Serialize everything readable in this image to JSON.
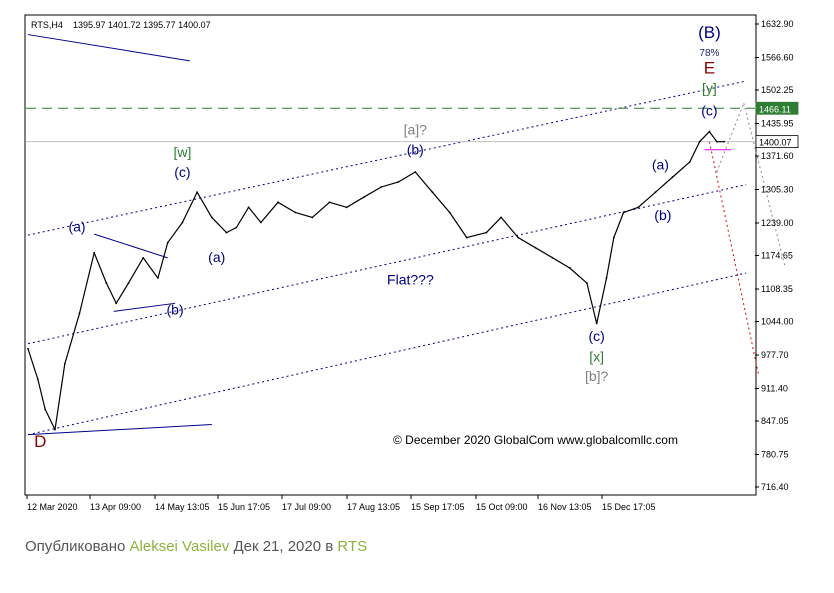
{
  "chart_data": {
    "type": "line",
    "title": "RTS,H4",
    "ohlc_header": "1395.97 1401.72 1395.77 1400.07",
    "ylim": [
      716.4,
      1632.9
    ],
    "y_ticks": [
      "1632.90",
      "1566.60",
      "1502.25",
      "1435.95",
      "1371.60",
      "1305.30",
      "1239.00",
      "1174.65",
      "1108.35",
      "1044.00",
      "977.70",
      "911.40",
      "847.05",
      "780.75",
      "716.40"
    ],
    "x_ticks": [
      "12 Mar 2020",
      "13 Apr 09:00",
      "14 May 13:05",
      "15 Jun 17:05",
      "17 Jul 09:00",
      "17 Aug 13:05",
      "15 Sep 17:05",
      "15 Oct 09:00",
      "16 Nov 13:05",
      "15 Dec 17:05"
    ],
    "series": [
      {
        "x": [
          "12 Mar",
          "16 Mar",
          "19 Mar",
          "23 Mar",
          "27 Mar",
          "02 Apr",
          "08 Apr",
          "13 Apr",
          "17 Apr",
          "22 Apr",
          "28 Apr",
          "04 May",
          "08 May",
          "14 May",
          "20 May",
          "26 May",
          "01 Jun",
          "05 Jun",
          "10 Jun",
          "15 Jun",
          "22 Jun",
          "29 Jun",
          "06 Jul",
          "13 Jul",
          "20 Jul",
          "27 Jul",
          "03 Aug",
          "10 Aug",
          "17 Aug",
          "24 Aug",
          "31 Aug",
          "07 Sep",
          "15 Sep",
          "21 Sep",
          "28 Sep",
          "05 Oct",
          "12 Oct",
          "19 Oct",
          "26 Oct",
          "30 Oct",
          "03 Nov",
          "06 Nov",
          "10 Nov",
          "16 Nov",
          "23 Nov",
          "30 Nov",
          "07 Dec",
          "11 Dec",
          "15 Dec",
          "18 Dec",
          "21 Dec"
        ],
        "values": [
          990,
          930,
          870,
          830,
          960,
          1060,
          1180,
          1120,
          1080,
          1120,
          1170,
          1130,
          1200,
          1240,
          1300,
          1250,
          1220,
          1230,
          1270,
          1240,
          1280,
          1260,
          1250,
          1280,
          1270,
          1290,
          1310,
          1320,
          1340,
          1300,
          1260,
          1210,
          1220,
          1250,
          1210,
          1190,
          1170,
          1150,
          1120,
          1040,
          1130,
          1210,
          1260,
          1270,
          1300,
          1330,
          1360,
          1400,
          1420,
          1400,
          1400
        ]
      }
    ],
    "h_lines": [
      {
        "value": 1466.11,
        "label": "1466.11",
        "style": "dashed",
        "color": "#2e7d32"
      },
      {
        "value": 1400.07,
        "label": "1400.07",
        "style": "solid",
        "color": "#c0c0c0"
      }
    ],
    "channel_lines": [
      {
        "x1": "12 Mar",
        "y1": 1215,
        "x2": "30 Dec",
        "y2": 1520,
        "style": "dotted",
        "color": "#00008b"
      },
      {
        "x1": "12 Mar",
        "y1": 1000,
        "x2": "30 Dec",
        "y2": 1315,
        "style": "dotted",
        "color": "#00008b"
      },
      {
        "x1": "12 Mar",
        "y1": 820,
        "x2": "30 Dec",
        "y2": 1140,
        "style": "dotted",
        "color": "#00008b"
      },
      {
        "x1": "12 Mar",
        "y1": 820,
        "x2": "26 May",
        "y2": 840,
        "style": "solid",
        "color": "#00008b"
      },
      {
        "x1": "12 Mar",
        "y1": 1612,
        "x2": "17 May",
        "y2": 1560,
        "style": "solid",
        "color": "#00008b"
      },
      {
        "x1": "08 Apr",
        "y1": 1217,
        "x2": "08 May",
        "y2": 1170,
        "style": "solid",
        "color": "#00008b"
      },
      {
        "x1": "16 Apr",
        "y1": 1064,
        "x2": "11 May",
        "y2": 1080,
        "style": "solid",
        "color": "#00008b"
      },
      {
        "x1": "13 Dec",
        "y1": 1384,
        "x2": "24 Dec",
        "y2": 1384,
        "style": "solid",
        "color": "#e000e0"
      },
      {
        "x1": "15 Dec",
        "y1": 1400,
        "x2": "04 Jan",
        "y2": 940,
        "style": "dotted",
        "color": "#e00000"
      },
      {
        "x1": "18 Dec",
        "y1": 1340,
        "x2": "29 Dec",
        "y2": 1476,
        "style": "dotted",
        "color": "#888888"
      },
      {
        "x1": "29 Dec",
        "y1": 1476,
        "x2": "15 Jan",
        "y2": 1150,
        "style": "dotted",
        "color": "#888888"
      }
    ],
    "annotations": [
      {
        "text": "(B)",
        "x": "15 Dec",
        "y": 1605,
        "color": "#00008b",
        "size": 17
      },
      {
        "text": "78%",
        "x": "15 Dec",
        "y": 1570,
        "color": "#1a237e",
        "size": 10
      },
      {
        "text": "E",
        "x": "15 Dec",
        "y": 1535,
        "color": "#8b0000",
        "size": 17
      },
      {
        "text": "[y]",
        "x": "15 Dec",
        "y": 1496,
        "color": "#2e7d32",
        "size": 14
      },
      {
        "text": "(c)",
        "x": "15 Dec",
        "y": 1452,
        "color": "#00008b",
        "size": 14
      },
      {
        "text": "[a]?",
        "x": "17 Aug",
        "y": 1414,
        "color": "#808080",
        "size": 14
      },
      {
        "text": "(b)",
        "x": "17 Aug",
        "y": 1375,
        "color": "#00008b",
        "size": 14
      },
      {
        "text": "[w]",
        "x": "14 May",
        "y": 1370,
        "color": "#2e7d32",
        "size": 14
      },
      {
        "text": "(c)",
        "x": "14 May",
        "y": 1330,
        "color": "#00008b",
        "size": 14
      },
      {
        "text": "(a)",
        "x": "01 Apr",
        "y": 1222,
        "color": "#00008b",
        "size": 14
      },
      {
        "text": "(a)",
        "x": "28 May",
        "y": 1162,
        "color": "#00008b",
        "size": 14
      },
      {
        "text": "(b)",
        "x": "11 May",
        "y": 1058,
        "color": "#00008b",
        "size": 14
      },
      {
        "text": "Flat???",
        "x": "15 Aug",
        "y": 1117,
        "color": "#00008b",
        "size": 14
      },
      {
        "text": "(a)",
        "x": "25 Nov",
        "y": 1345,
        "color": "#00008b",
        "size": 14
      },
      {
        "text": "(b)",
        "x": "26 Nov",
        "y": 1245,
        "color": "#00008b",
        "size": 14
      },
      {
        "text": "(c)",
        "x": "30 Oct",
        "y": 1005,
        "color": "#00008b",
        "size": 14
      },
      {
        "text": "[x]",
        "x": "30 Oct",
        "y": 965,
        "color": "#2e7d32",
        "size": 14
      },
      {
        "text": "[b]?",
        "x": "30 Oct",
        "y": 926,
        "color": "#808080",
        "size": 14
      },
      {
        "text": "D",
        "x": "17 Mar",
        "y": 796,
        "color": "#8b0000",
        "size": 17
      }
    ],
    "copyright": "© December 2020 GlobalCom www.globalcomllc.com",
    "grid": false
  },
  "footer": {
    "prefix": "Опубликовано",
    "author": "Aleksei Vasilev",
    "date": "Дек 21, 2020 в",
    "symbol": "RTS"
  }
}
